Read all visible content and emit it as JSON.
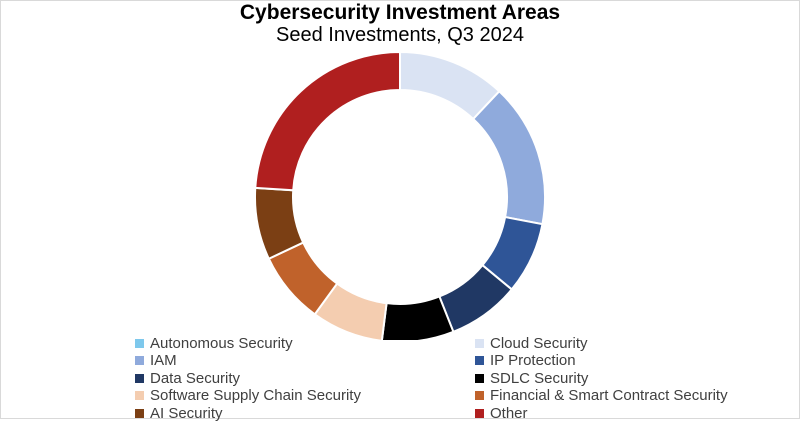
{
  "chart_data": {
    "type": "pie",
    "variant": "donut",
    "title": "Cybersecurity Investment Areas",
    "subtitle": "Seed Investments, Q3 2024",
    "legend_position": "bottom",
    "slices": [
      {
        "name": "Autonomous Security",
        "value": 0,
        "color": "#7ec8ec"
      },
      {
        "name": "Cloud Security",
        "value": 12,
        "color": "#dae3f3"
      },
      {
        "name": "IAM",
        "value": 16,
        "color": "#8faadc"
      },
      {
        "name": "IP Protection",
        "value": 8,
        "color": "#2f5597"
      },
      {
        "name": "Data Security",
        "value": 8,
        "color": "#203864"
      },
      {
        "name": "SDLC Security",
        "value": 8,
        "color": "#000000"
      },
      {
        "name": "Software Supply Chain Security",
        "value": 8,
        "color": "#f4cdb0"
      },
      {
        "name": "Financial & Smart Contract Security",
        "value": 8,
        "color": "#c0622b"
      },
      {
        "name": "AI Security",
        "value": 8,
        "color": "#7b3f14"
      },
      {
        "name": "Other",
        "value": 24,
        "color": "#b01f1f"
      }
    ]
  }
}
